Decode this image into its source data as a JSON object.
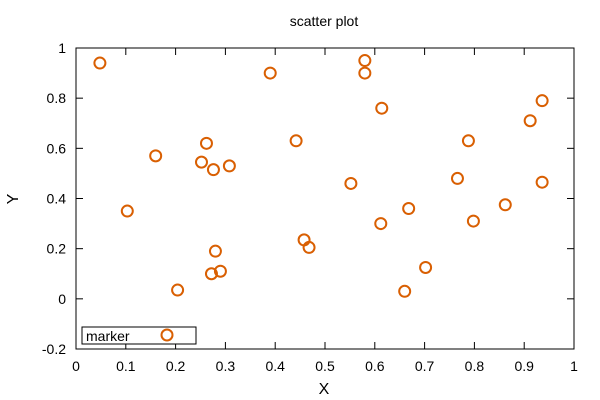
{
  "chart_data": {
    "type": "scatter",
    "title": "scatter plot",
    "xlabel": "X",
    "ylabel": "Y",
    "xlim": [
      0,
      1
    ],
    "ylim": [
      -0.2,
      1
    ],
    "xticks": [
      "0",
      "0.1",
      "0.2",
      "0.3",
      "0.4",
      "0.5",
      "0.6",
      "0.7",
      "0.8",
      "0.9",
      "1"
    ],
    "yticks": [
      "-0.2",
      "0",
      "0.2",
      "0.4",
      "0.6",
      "0.8",
      "1"
    ],
    "grid": false,
    "legend_position": "bottom-left",
    "series": [
      {
        "name": "marker",
        "marker": "open-circle",
        "color": "#d95f02",
        "points": [
          [
            0.048,
            0.94
          ],
          [
            0.103,
            0.35
          ],
          [
            0.16,
            0.57
          ],
          [
            0.204,
            0.035
          ],
          [
            0.252,
            0.545
          ],
          [
            0.262,
            0.62
          ],
          [
            0.272,
            0.1
          ],
          [
            0.276,
            0.515
          ],
          [
            0.28,
            0.19
          ],
          [
            0.29,
            0.11
          ],
          [
            0.308,
            0.53
          ],
          [
            0.39,
            0.9
          ],
          [
            0.442,
            0.63
          ],
          [
            0.458,
            0.235
          ],
          [
            0.468,
            0.205
          ],
          [
            0.552,
            0.46
          ],
          [
            0.58,
            0.95
          ],
          [
            0.58,
            0.9
          ],
          [
            0.612,
            0.3
          ],
          [
            0.614,
            0.76
          ],
          [
            0.66,
            0.03
          ],
          [
            0.668,
            0.36
          ],
          [
            0.702,
            0.125
          ],
          [
            0.766,
            0.48
          ],
          [
            0.788,
            0.63
          ],
          [
            0.798,
            0.31
          ],
          [
            0.862,
            0.375
          ],
          [
            0.912,
            0.71
          ],
          [
            0.936,
            0.79
          ],
          [
            0.936,
            0.465
          ]
        ]
      }
    ]
  }
}
